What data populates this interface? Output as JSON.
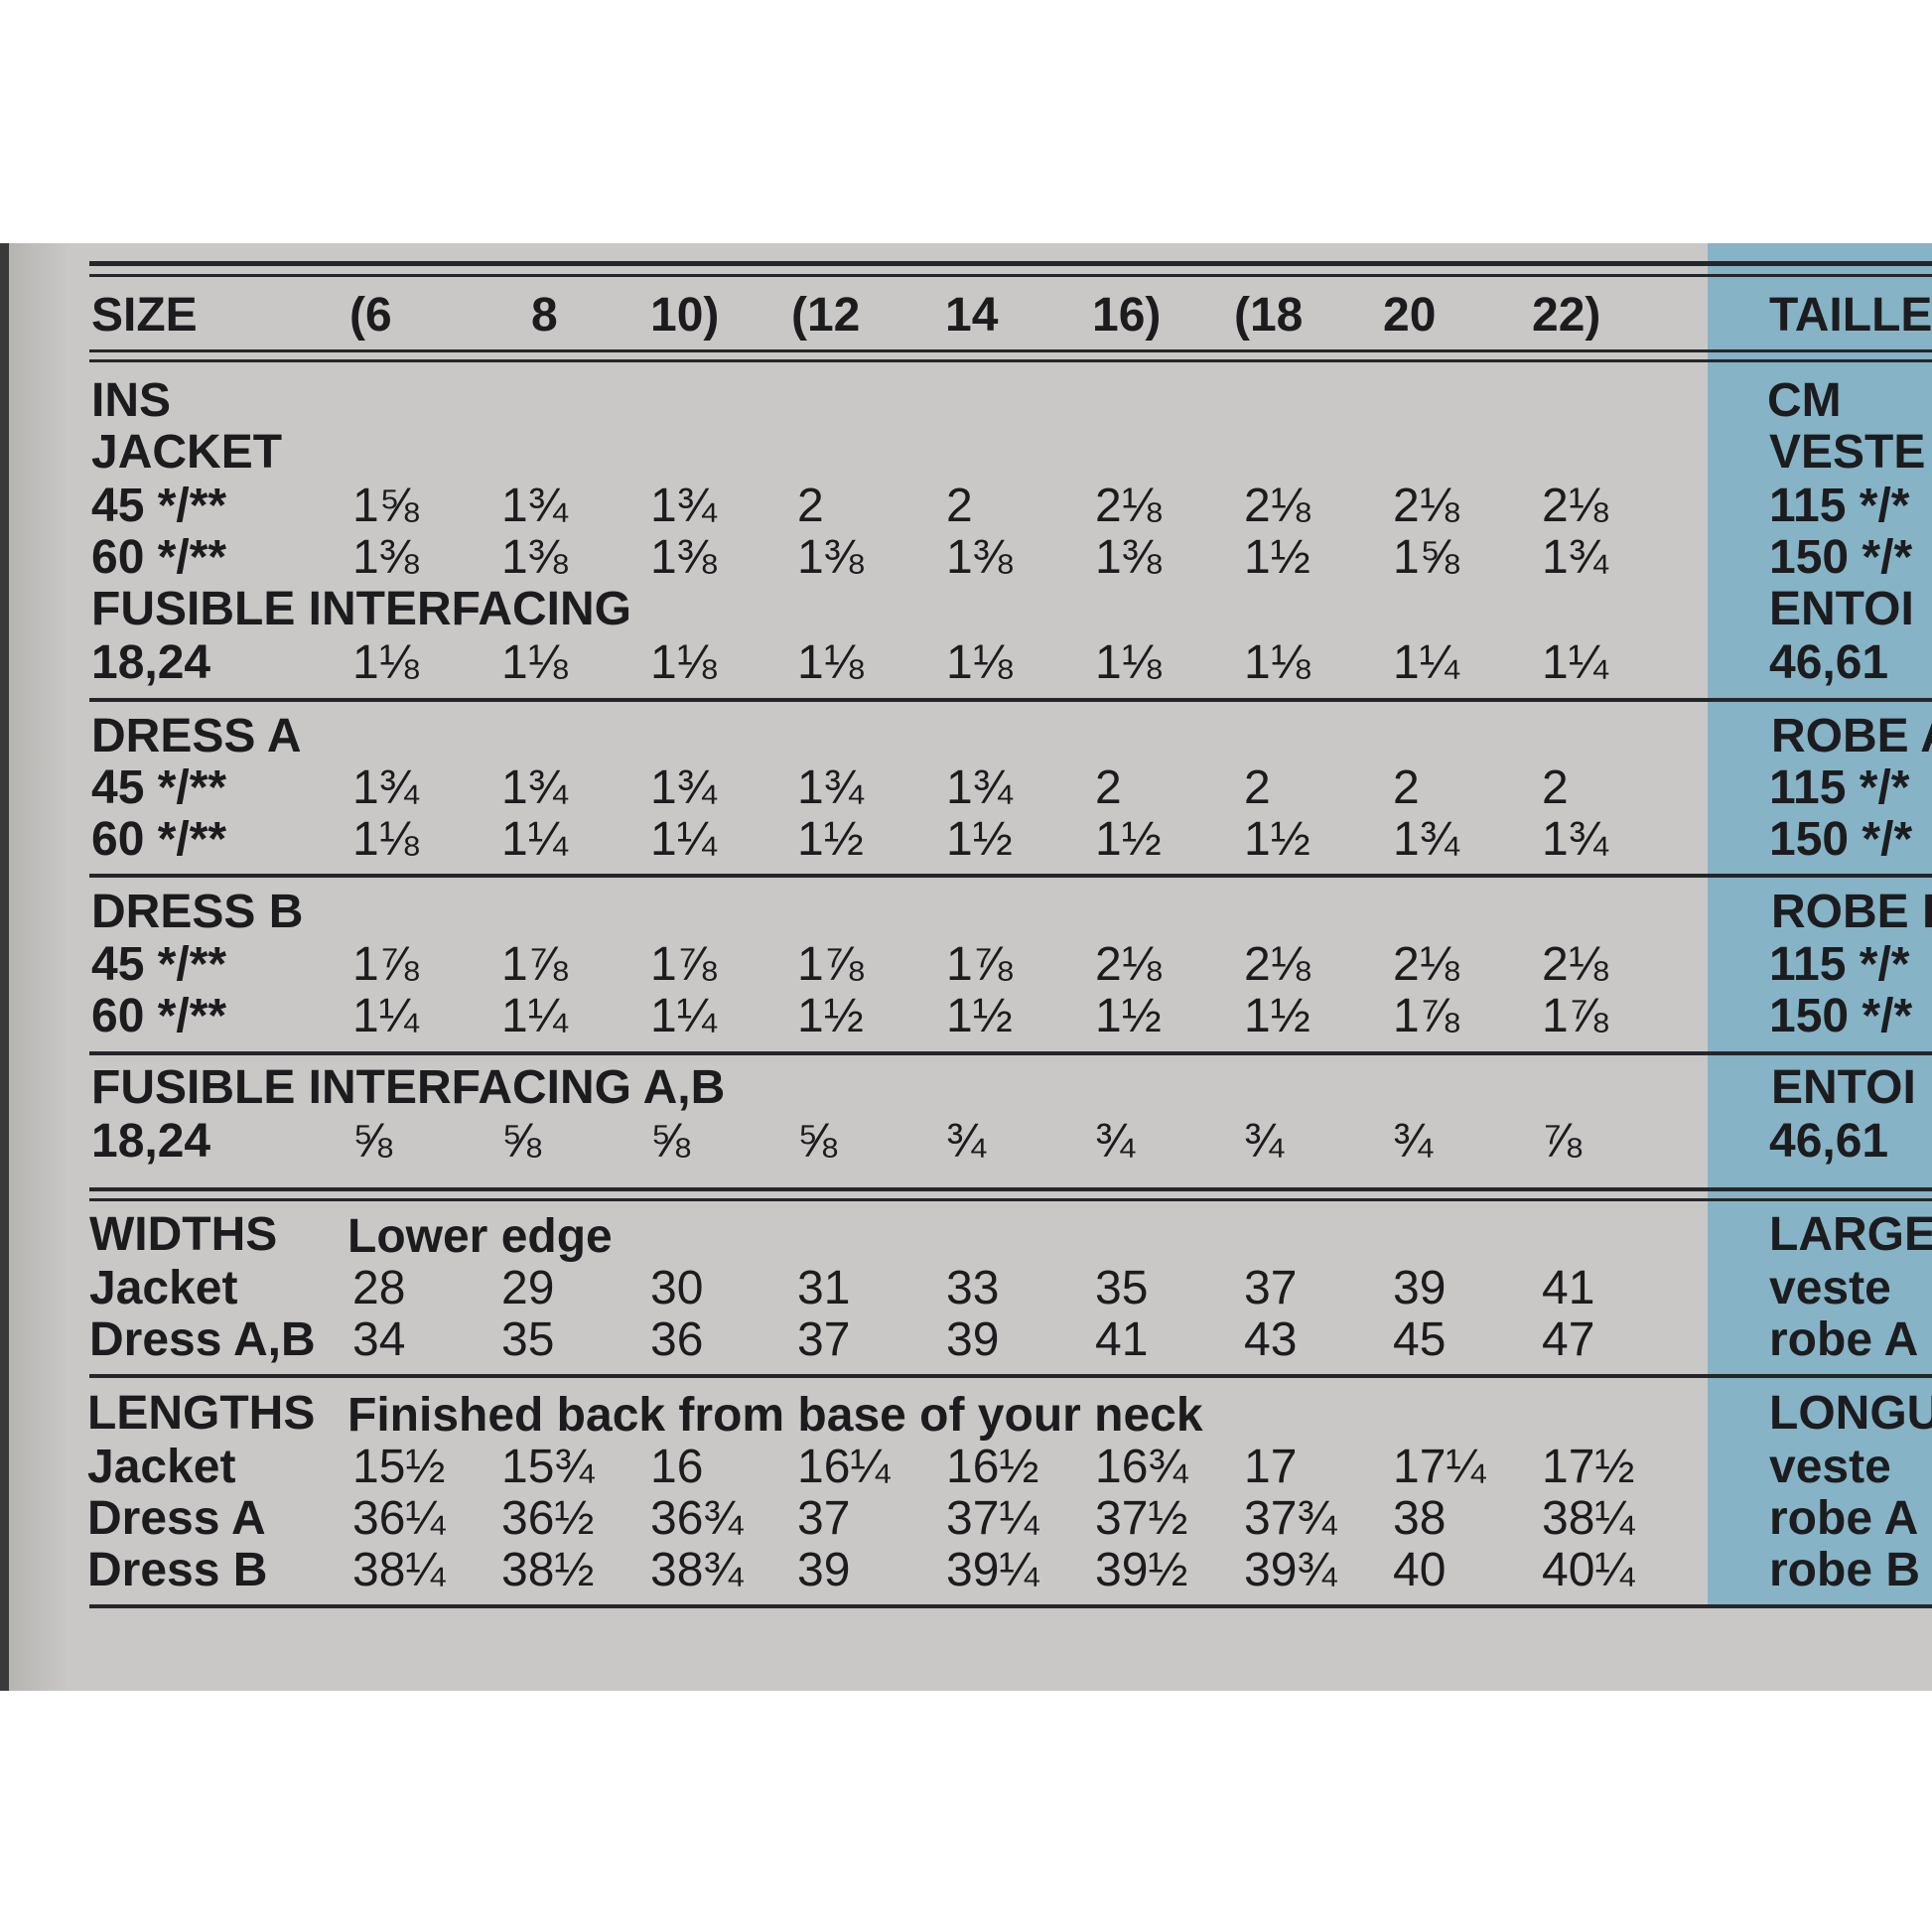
{
  "header": {
    "label": "SIZE",
    "sizes": [
      "(6",
      "8",
      "10)",
      "(12",
      "14",
      "16)",
      "(18",
      "20",
      "22)"
    ],
    "french": "TAILLE"
  },
  "yardage": {
    "units": "INS",
    "units_fr": "CM",
    "jacket": {
      "title": "JACKET",
      "title_fr": "VESTE",
      "rows": [
        {
          "label": "45 */**",
          "label_fr": "115 */*",
          "values": [
            "1⅝",
            "1¾",
            "1¾",
            "2",
            "2",
            "2⅛",
            "2⅛",
            "2⅛",
            "2⅛"
          ]
        },
        {
          "label": "60 */**",
          "label_fr": "150 */*",
          "values": [
            "1⅜",
            "1⅜",
            "1⅜",
            "1⅜",
            "1⅜",
            "1⅜",
            "1½",
            "1⅝",
            "1¾"
          ]
        }
      ],
      "interfacing_title": "FUSIBLE INTERFACING",
      "interfacing_title_fr": "ENTOI",
      "interfacing": {
        "label": "18,24",
        "label_fr": "46,61",
        "values": [
          "1⅛",
          "1⅛",
          "1⅛",
          "1⅛",
          "1⅛",
          "1⅛",
          "1⅛",
          "1¼",
          "1¼"
        ]
      }
    },
    "dress_a": {
      "title": "DRESS A",
      "title_fr": "ROBE A",
      "rows": [
        {
          "label": "45 */**",
          "label_fr": "115 */*",
          "values": [
            "1¾",
            "1¾",
            "1¾",
            "1¾",
            "1¾",
            "2",
            "2",
            "2",
            "2"
          ]
        },
        {
          "label": "60 */**",
          "label_fr": "150 */*",
          "values": [
            "1⅛",
            "1¼",
            "1¼",
            "1½",
            "1½",
            "1½",
            "1½",
            "1¾",
            "1¾"
          ]
        }
      ]
    },
    "dress_b": {
      "title": "DRESS B",
      "title_fr": "ROBE B",
      "rows": [
        {
          "label": "45 */**",
          "label_fr": "115 */*",
          "values": [
            "1⅞",
            "1⅞",
            "1⅞",
            "1⅞",
            "1⅞",
            "2⅛",
            "2⅛",
            "2⅛",
            "2⅛"
          ]
        },
        {
          "label": "60 */**",
          "label_fr": "150 */*",
          "values": [
            "1¼",
            "1¼",
            "1¼",
            "1½",
            "1½",
            "1½",
            "1½",
            "1⅞",
            "1⅞"
          ]
        }
      ]
    },
    "interfacing_ab": {
      "title": "FUSIBLE INTERFACING A,B",
      "title_fr": "ENTOI",
      "row": {
        "label": "18,24",
        "label_fr": "46,61",
        "values": [
          "⅝",
          "⅝",
          "⅝",
          "⅝",
          "¾",
          "¾",
          "¾",
          "¾",
          "⅞"
        ]
      }
    }
  },
  "widths": {
    "title": "WIDTHS",
    "subtitle": "Lower edge",
    "title_fr": "LARGE",
    "rows": [
      {
        "label": "Jacket",
        "label_fr": "veste",
        "values": [
          "28",
          "29",
          "30",
          "31",
          "33",
          "35",
          "37",
          "39",
          "41"
        ]
      },
      {
        "label": "Dress A,B",
        "label_fr": "robe A",
        "values": [
          "34",
          "35",
          "36",
          "37",
          "39",
          "41",
          "43",
          "45",
          "47"
        ]
      }
    ]
  },
  "lengths": {
    "title": "LENGTHS",
    "subtitle": "Finished back from base of your neck",
    "title_fr": "LONGU",
    "rows": [
      {
        "label": "Jacket",
        "label_fr": "veste",
        "values": [
          "15½",
          "15¾",
          "16",
          "16¼",
          "16½",
          "16¾",
          "17",
          "17¼",
          "17½"
        ]
      },
      {
        "label": "Dress A",
        "label_fr": "robe A",
        "values": [
          "36¼",
          "36½",
          "36¾",
          "37",
          "37¼",
          "37½",
          "37¾",
          "38",
          "38¼"
        ]
      },
      {
        "label": "Dress B",
        "label_fr": "robe B",
        "values": [
          "38¼",
          "38½",
          "38¾",
          "39",
          "39¼",
          "39½",
          "39¾",
          "40",
          "40¼"
        ]
      }
    ]
  }
}
